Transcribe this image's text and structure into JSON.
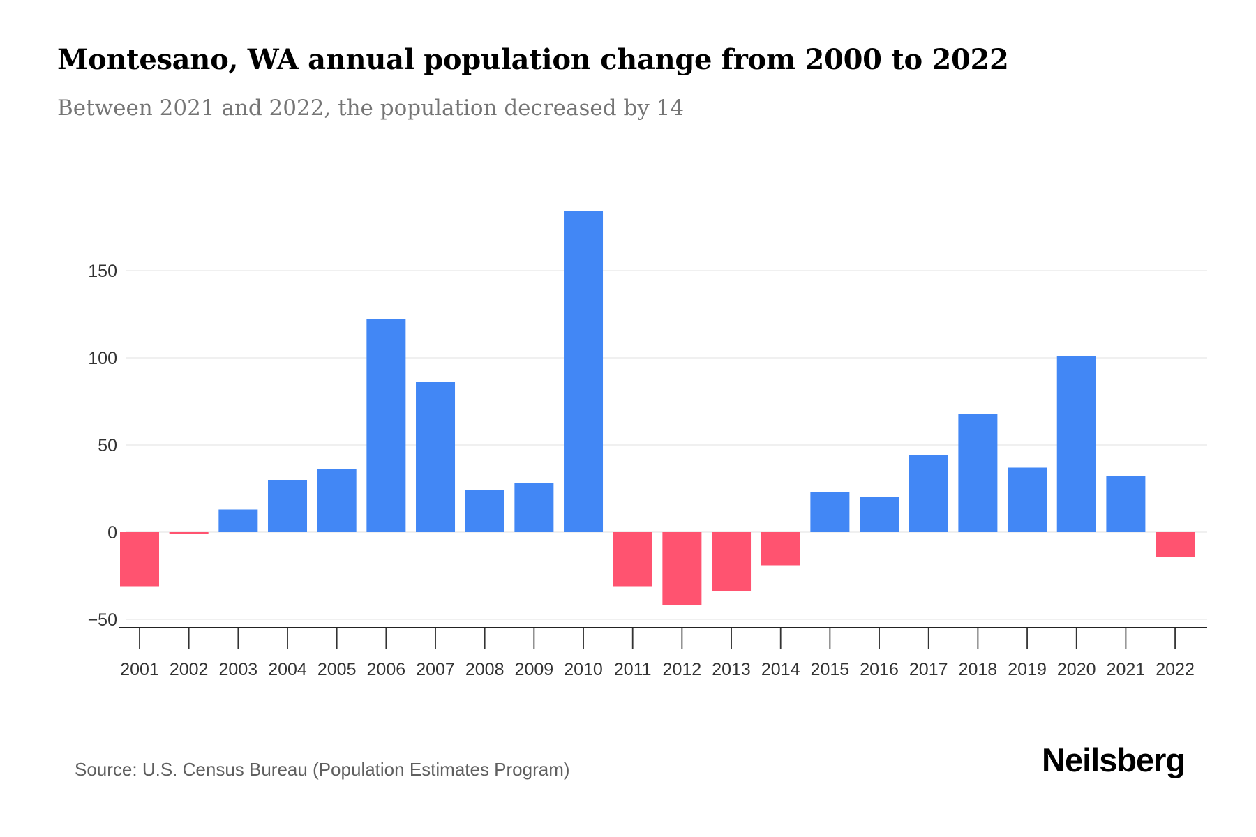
{
  "header": {
    "title": "Montesano, WA annual population change from 2000 to 2022",
    "subtitle": "Between 2021 and 2022, the population decreased by 14"
  },
  "footer": {
    "source": "Source: U.S. Census Bureau (Population Estimates Program)",
    "brand": "Neilsberg"
  },
  "colors": {
    "positive": "#4287f5",
    "negative": "#ff5370",
    "grid": "#ececec",
    "axis": "#222222"
  },
  "chart_data": {
    "type": "bar",
    "title": "Montesano, WA annual population change from 2000 to 2022",
    "subtitle": "Between 2021 and 2022, the population decreased by 14",
    "xlabel": "",
    "ylabel": "",
    "categories": [
      "2001",
      "2002",
      "2003",
      "2004",
      "2005",
      "2006",
      "2007",
      "2008",
      "2009",
      "2010",
      "2011",
      "2012",
      "2013",
      "2014",
      "2015",
      "2016",
      "2017",
      "2018",
      "2019",
      "2020",
      "2021",
      "2022"
    ],
    "values": [
      -31,
      -1,
      13,
      30,
      36,
      122,
      86,
      24,
      28,
      184,
      -31,
      -42,
      -34,
      -19,
      23,
      20,
      44,
      68,
      37,
      101,
      32,
      -14
    ],
    "yticks": [
      -50,
      0,
      50,
      100,
      150
    ],
    "ytick_labels": [
      "−50",
      "0",
      "50",
      "100",
      "150"
    ],
    "ylim": [
      -55,
      185
    ],
    "grid": true,
    "legend": "none",
    "color_rule": "positive values blue, negative values red"
  }
}
